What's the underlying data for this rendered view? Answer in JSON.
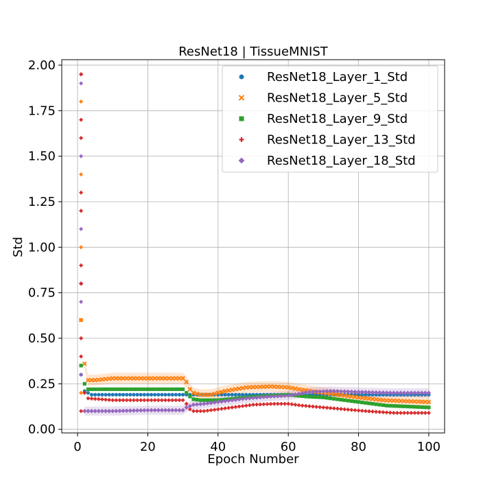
{
  "chart_data": {
    "type": "scatter",
    "title": "ResNet18 | TissueMNIST",
    "xlabel": "Epoch Number",
    "ylabel": "Std",
    "xlim": [
      -4.5,
      104.5
    ],
    "ylim": [
      -0.02,
      2.03
    ],
    "xticks": [
      0,
      20,
      40,
      60,
      80,
      100
    ],
    "xtick_labels": [
      "0",
      "20",
      "40",
      "60",
      "80",
      "100"
    ],
    "yticks": [
      0.0,
      0.25,
      0.5,
      0.75,
      1.0,
      1.25,
      1.5,
      1.75,
      2.0
    ],
    "ytick_labels": [
      "0.00",
      "0.25",
      "0.50",
      "0.75",
      "1.00",
      "1.25",
      "1.50",
      "1.75",
      "2.00"
    ],
    "grid": true,
    "legend_position": "top-right",
    "series": [
      {
        "name": "ResNet18_Layer_1_Std",
        "marker": "circle",
        "color": "#1f77b4",
        "keyframes": [
          [
            1,
            0.3
          ],
          [
            2,
            0.21
          ],
          [
            3,
            0.2
          ],
          [
            4,
            0.19
          ],
          [
            5,
            0.19
          ],
          [
            100,
            0.19
          ]
        ]
      },
      {
        "name": "ResNet18_Layer_5_Std",
        "marker": "x",
        "color": "#ff7f0e",
        "keyframes": [
          [
            1,
            0.6
          ],
          [
            2,
            0.36
          ],
          [
            3,
            0.27
          ],
          [
            5,
            0.27
          ],
          [
            10,
            0.28
          ],
          [
            20,
            0.28
          ],
          [
            30,
            0.28
          ],
          [
            31,
            0.26
          ],
          [
            32,
            0.22
          ],
          [
            33,
            0.2
          ],
          [
            35,
            0.19
          ],
          [
            38,
            0.19
          ],
          [
            42,
            0.21
          ],
          [
            48,
            0.23
          ],
          [
            55,
            0.235
          ],
          [
            60,
            0.23
          ],
          [
            63,
            0.22
          ],
          [
            68,
            0.205
          ],
          [
            74,
            0.19
          ],
          [
            80,
            0.175
          ],
          [
            87,
            0.16
          ],
          [
            93,
            0.155
          ],
          [
            100,
            0.15
          ]
        ]
      },
      {
        "name": "ResNet18_Layer_9_Std",
        "marker": "square",
        "color": "#2ca02c",
        "keyframes": [
          [
            1,
            0.35
          ],
          [
            2,
            0.25
          ],
          [
            3,
            0.22
          ],
          [
            10,
            0.22
          ],
          [
            20,
            0.22
          ],
          [
            30,
            0.22
          ],
          [
            31,
            0.2
          ],
          [
            32,
            0.18
          ],
          [
            33,
            0.165
          ],
          [
            35,
            0.16
          ],
          [
            40,
            0.16
          ],
          [
            48,
            0.175
          ],
          [
            55,
            0.185
          ],
          [
            60,
            0.19
          ],
          [
            65,
            0.18
          ],
          [
            70,
            0.175
          ],
          [
            76,
            0.16
          ],
          [
            82,
            0.145
          ],
          [
            88,
            0.13
          ],
          [
            94,
            0.125
          ],
          [
            100,
            0.12
          ]
        ]
      },
      {
        "name": "ResNet18_Layer_13_Std",
        "marker": "plus",
        "color": "#d62728",
        "keyframes": [
          [
            1,
            1.95
          ],
          [
            2,
            0.2
          ],
          [
            3,
            0.17
          ],
          [
            10,
            0.16
          ],
          [
            20,
            0.16
          ],
          [
            30,
            0.16
          ],
          [
            31,
            0.14
          ],
          [
            32,
            0.11
          ],
          [
            33,
            0.1
          ],
          [
            36,
            0.1
          ],
          [
            42,
            0.115
          ],
          [
            50,
            0.135
          ],
          [
            56,
            0.14
          ],
          [
            60,
            0.14
          ],
          [
            64,
            0.13
          ],
          [
            70,
            0.12
          ],
          [
            76,
            0.11
          ],
          [
            82,
            0.1
          ],
          [
            90,
            0.09
          ],
          [
            100,
            0.09
          ]
        ]
      },
      {
        "name": "ResNet18_Layer_18_Std",
        "marker": "diamond",
        "color": "#9467bd",
        "keyframes": [
          [
            1,
            0.8
          ],
          [
            2,
            0.1
          ],
          [
            3,
            0.1
          ],
          [
            10,
            0.1
          ],
          [
            20,
            0.105
          ],
          [
            30,
            0.105
          ],
          [
            31,
            0.12
          ],
          [
            33,
            0.135
          ],
          [
            36,
            0.14
          ],
          [
            42,
            0.155
          ],
          [
            48,
            0.17
          ],
          [
            55,
            0.18
          ],
          [
            60,
            0.185
          ],
          [
            63,
            0.195
          ],
          [
            66,
            0.205
          ],
          [
            72,
            0.21
          ],
          [
            80,
            0.205
          ],
          [
            90,
            0.2
          ],
          [
            100,
            0.2
          ]
        ]
      }
    ],
    "spike_epoch": 1,
    "spike_values": [
      0.1,
      0.2,
      0.3,
      0.4,
      0.5,
      0.6,
      0.7,
      0.8,
      0.9,
      1.0,
      1.1,
      1.2,
      1.3,
      1.4,
      1.5,
      1.6,
      1.7,
      1.8,
      1.9,
      1.95
    ]
  }
}
